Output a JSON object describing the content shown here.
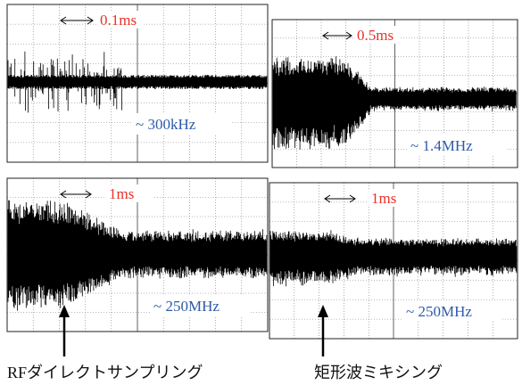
{
  "panels": [
    {
      "time_scale": "0.1ms",
      "frequency": "~ 300kHz"
    },
    {
      "time_scale": "0.5ms",
      "frequency": "~ 1.4MHz"
    },
    {
      "time_scale": "1ms",
      "frequency": "~ 250MHz"
    },
    {
      "time_scale": "1ms",
      "frequency": "~ 250MHz"
    }
  ],
  "captions": [
    "RFダイレクトサンプリング",
    "矩形波ミキシング"
  ]
}
